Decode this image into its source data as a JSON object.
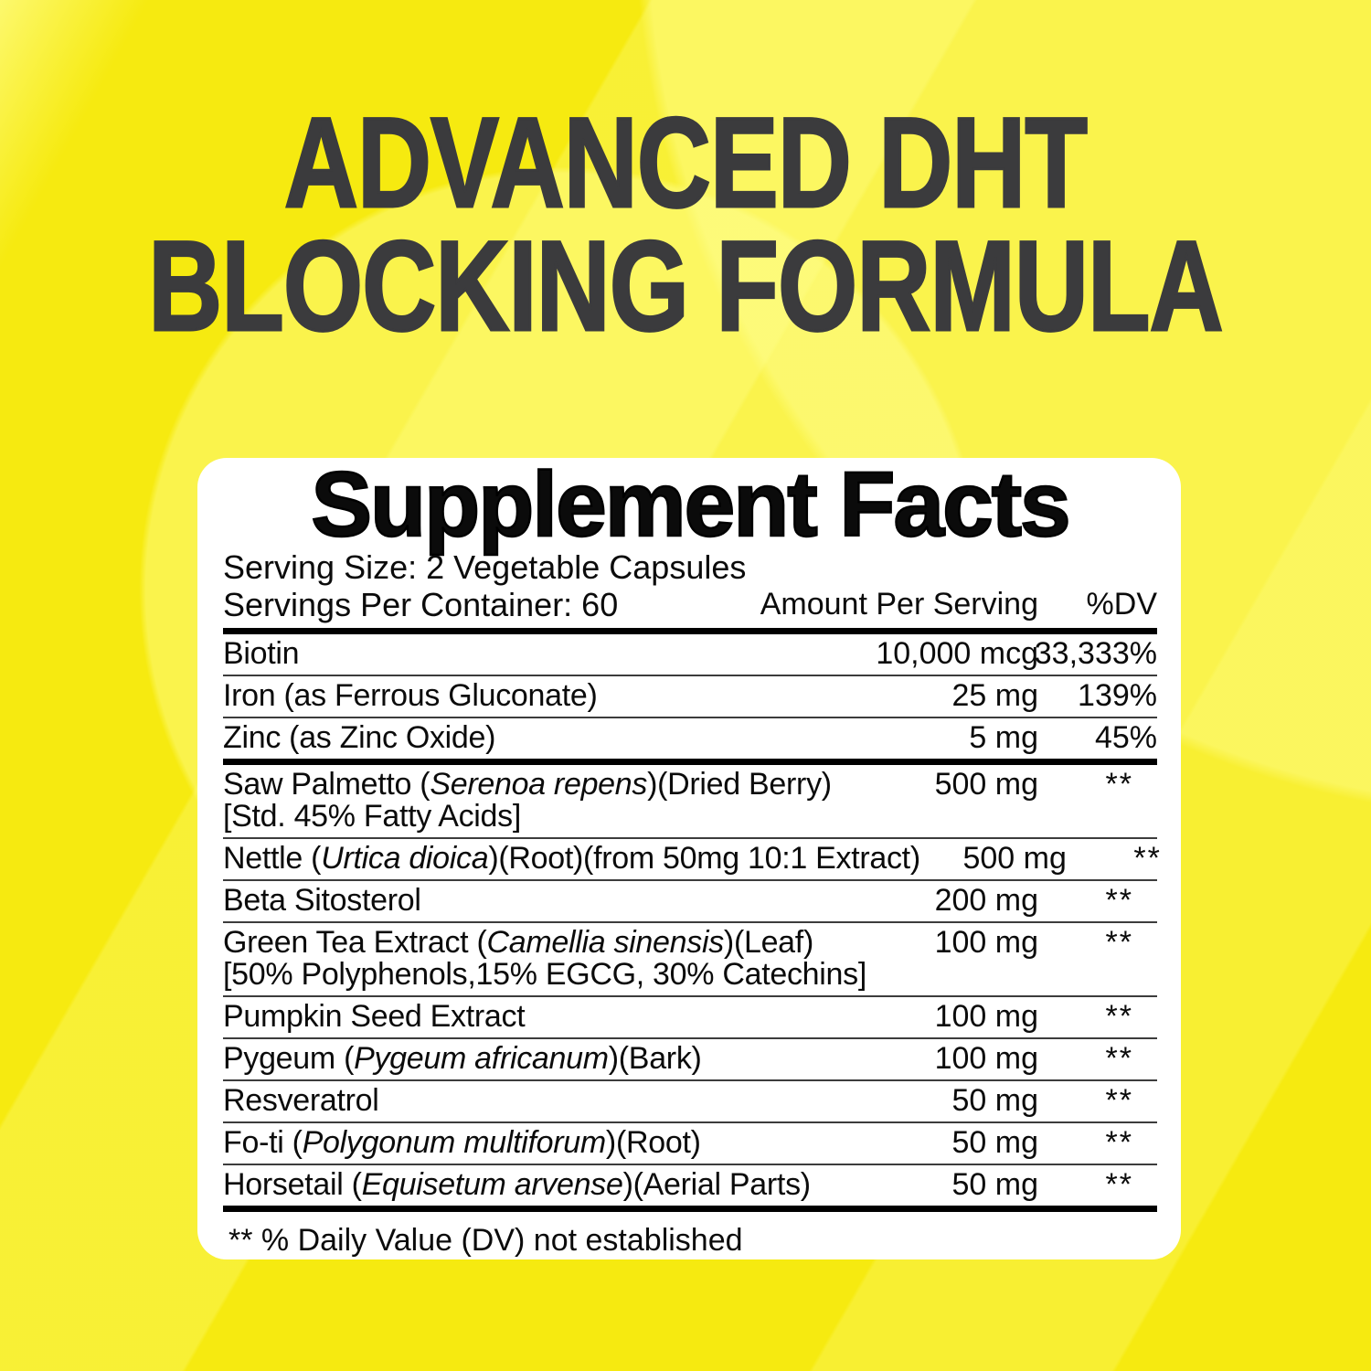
{
  "headline": {
    "line1": "ADVANCED DHT",
    "line2": "BLOCKING FORMULA"
  },
  "colors": {
    "background_yellow": "#F6EA10",
    "gloss_yellow": "#FAF55F",
    "headline_text": "#3B3B3D",
    "panel_background": "#FFFFFF",
    "panel_text": "#000000"
  },
  "panel": {
    "title": "Supplement Facts",
    "serving_size": "Serving Size: 2 Vegetable Capsules",
    "servings_per_container": "Servings Per Container: 60",
    "amount_header": "Amount Per Serving",
    "dv_header": "%DV",
    "footnote": "** % Daily Value (DV) not established",
    "rows": [
      {
        "rule": "none",
        "name": [
          {
            "t": "Biotin"
          }
        ],
        "amount": "10,000 mcg",
        "dv": "33,333%"
      },
      {
        "rule": "thin",
        "name": [
          {
            "t": "Iron (as Ferrous Gluconate)"
          }
        ],
        "amount": "25 mg",
        "dv": "139%"
      },
      {
        "rule": "thin",
        "name": [
          {
            "t": "Zinc (as Zinc Oxide)"
          }
        ],
        "amount": "5 mg",
        "dv": "45%"
      },
      {
        "rule": "thick",
        "name": [
          {
            "t": "Saw Palmetto ("
          },
          {
            "t": "Serenoa repens",
            "i": true
          },
          {
            "t": ")(Dried Berry)"
          }
        ],
        "name2": "[Std. 45% Fatty Acids]",
        "amount": "500 mg",
        "dv": "**"
      },
      {
        "rule": "thin",
        "name": [
          {
            "t": "Nettle ("
          },
          {
            "t": "Urtica dioica",
            "i": true
          },
          {
            "t": ")(Root)(from 50mg 10:1 Extract)"
          }
        ],
        "amount": "500 mg",
        "dv": "**"
      },
      {
        "rule": "thin",
        "name": [
          {
            "t": "Beta Sitosterol"
          }
        ],
        "amount": "200 mg",
        "dv": "**"
      },
      {
        "rule": "thin",
        "name": [
          {
            "t": "Green Tea Extract ("
          },
          {
            "t": "Camellia sinensis",
            "i": true
          },
          {
            "t": ")(Leaf)"
          }
        ],
        "name2": "[50% Polyphenols,15% EGCG, 30% Catechins]",
        "amount": "100 mg",
        "dv": "**"
      },
      {
        "rule": "thin",
        "name": [
          {
            "t": "Pumpkin Seed Extract"
          }
        ],
        "amount": "100 mg",
        "dv": "**"
      },
      {
        "rule": "thin",
        "name": [
          {
            "t": "Pygeum ("
          },
          {
            "t": "Pygeum africanum",
            "i": true
          },
          {
            "t": ")(Bark)"
          }
        ],
        "amount": "100 mg",
        "dv": "**"
      },
      {
        "rule": "thin",
        "name": [
          {
            "t": "Resveratrol"
          }
        ],
        "amount": "50 mg",
        "dv": "**"
      },
      {
        "rule": "thin",
        "name": [
          {
            "t": "Fo-ti ("
          },
          {
            "t": "Polygonum multiforum",
            "i": true
          },
          {
            "t": ")(Root)"
          }
        ],
        "amount": "50 mg",
        "dv": "**"
      },
      {
        "rule": "thin",
        "name": [
          {
            "t": "Horsetail ("
          },
          {
            "t": "Equisetum arvense",
            "i": true
          },
          {
            "t": ")(Aerial Parts)"
          }
        ],
        "amount": "50 mg",
        "dv": "**"
      }
    ]
  }
}
